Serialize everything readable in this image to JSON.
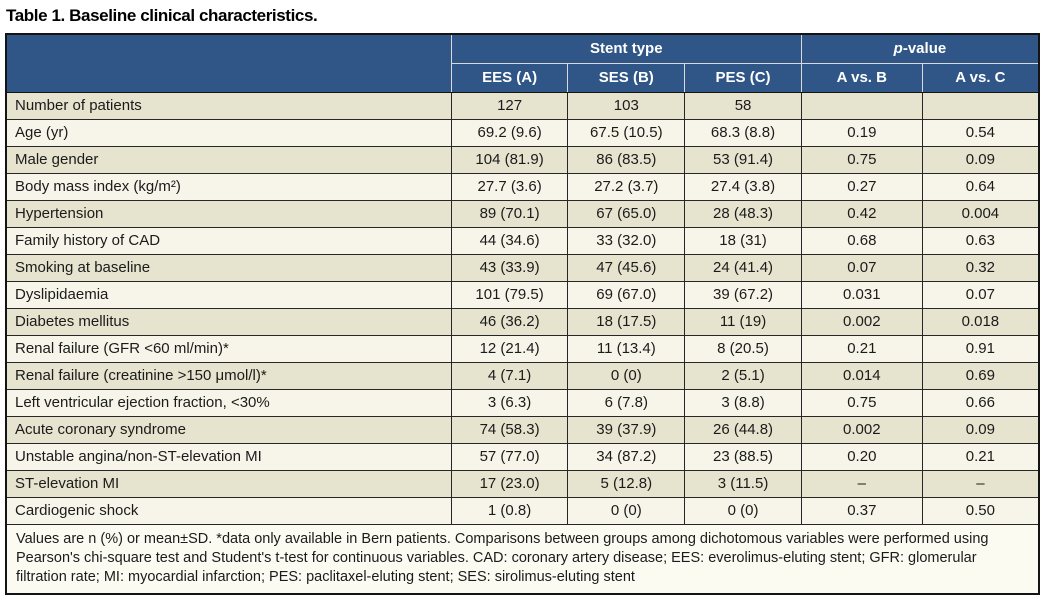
{
  "title": "Table 1. Baseline clinical characteristics.",
  "table": {
    "group_headers": {
      "stent_type": "Stent type",
      "p_italic": "p",
      "p_rest": "-value"
    },
    "col_headers": [
      "EES (A)",
      "SES (B)",
      "PES (C)",
      "A vs. B",
      "A vs. C"
    ],
    "rows": [
      {
        "label": "Number of patients",
        "ees": "127",
        "ses": "103",
        "pes": "58",
        "p_ab": "",
        "p_ac": ""
      },
      {
        "label": "Age (yr)",
        "ees": "69.2 (9.6)",
        "ses": "67.5 (10.5)",
        "pes": "68.3 (8.8)",
        "p_ab": "0.19",
        "p_ac": "0.54"
      },
      {
        "label": "Male gender",
        "ees": "104 (81.9)",
        "ses": "86 (83.5)",
        "pes": "53 (91.4)",
        "p_ab": "0.75",
        "p_ac": "0.09"
      },
      {
        "label": "Body mass index (kg/m²)",
        "ees": "27.7 (3.6)",
        "ses": "27.2 (3.7)",
        "pes": "27.4 (3.8)",
        "p_ab": "0.27",
        "p_ac": "0.64"
      },
      {
        "label": "Hypertension",
        "ees": "89 (70.1)",
        "ses": "67 (65.0)",
        "pes": "28 (48.3)",
        "p_ab": "0.42",
        "p_ac": "0.004"
      },
      {
        "label": "Family history of CAD",
        "ees": "44 (34.6)",
        "ses": "33 (32.0)",
        "pes": "18 (31)",
        "p_ab": "0.68",
        "p_ac": "0.63"
      },
      {
        "label": "Smoking at baseline",
        "ees": "43 (33.9)",
        "ses": "47 (45.6)",
        "pes": "24 (41.4)",
        "p_ab": "0.07",
        "p_ac": "0.32"
      },
      {
        "label": "Dyslipidaemia",
        "ees": "101 (79.5)",
        "ses": "69 (67.0)",
        "pes": "39 (67.2)",
        "p_ab": "0.031",
        "p_ac": "0.07"
      },
      {
        "label": "Diabetes mellitus",
        "ees": "46 (36.2)",
        "ses": "18 (17.5)",
        "pes": "11 (19)",
        "p_ab": "0.002",
        "p_ac": "0.018"
      },
      {
        "label": "Renal failure (GFR <60 ml/min)*",
        "ees": "12 (21.4)",
        "ses": "11 (13.4)",
        "pes": "8 (20.5)",
        "p_ab": "0.21",
        "p_ac": "0.91"
      },
      {
        "label": "Renal failure (creatinine >150 μmol/l)*",
        "ees": "4 (7.1)",
        "ses": "0 (0)",
        "pes": "2 (5.1)",
        "p_ab": "0.014",
        "p_ac": "0.69"
      },
      {
        "label": "Left ventricular ejection fraction, <30%",
        "ees": "3 (6.3)",
        "ses": "6 (7.8)",
        "pes": "3 (8.8)",
        "p_ab": "0.75",
        "p_ac": "0.66"
      },
      {
        "label": "Acute coronary syndrome",
        "ees": "74 (58.3)",
        "ses": "39 (37.9)",
        "pes": "26 (44.8)",
        "p_ab": "0.002",
        "p_ac": "0.09"
      },
      {
        "label": "Unstable angina/non-ST-elevation MI",
        "ees": "57 (77.0)",
        "ses": "34 (87.2)",
        "pes": "23 (88.5)",
        "p_ab": "0.20",
        "p_ac": "0.21"
      },
      {
        "label": "ST-elevation MI",
        "ees": "17 (23.0)",
        "ses": "5 (12.8)",
        "pes": "3 (11.5)",
        "p_ab": "–",
        "p_ac": "–"
      },
      {
        "label": "Cardiogenic shock",
        "ees": "1 (0.8)",
        "ses": "0 (0)",
        "pes": "0 (0)",
        "p_ab": "0.37",
        "p_ac": "0.50"
      }
    ],
    "footnote": "Values are n (%) or mean±SD. *data only available in Bern patients. Comparisons between groups among dichotomous variables were performed using Pearson's chi-square test and Student's t-test for continuous variables.  CAD: coronary artery disease; EES: everolimus-eluting stent; GFR: glomerular filtration rate; MI: myocardial infarction; PES: paclitaxel-eluting stent; SES: sirolimus-eluting stent"
  },
  "colors": {
    "header_blue": "#2f5686",
    "row_dark": "#e6e3ce",
    "row_light": "#f7f5e9",
    "footnote_bg": "#fcfbf2",
    "border_dark": "#141414",
    "header_divider": "#d9d9d9"
  }
}
